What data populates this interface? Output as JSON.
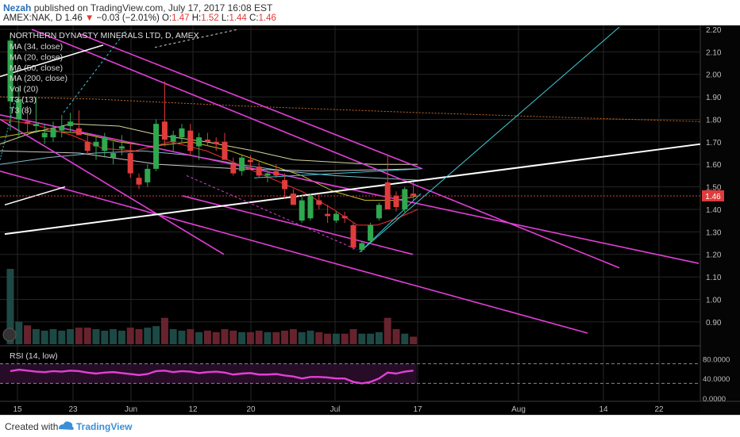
{
  "header": {
    "author": "Nezah",
    "published": "published on TradingView.com, July 17, 2017 16:08 EST",
    "symbol_line": "AMEX:NAK, D",
    "last": "1.46",
    "arrow": "▼",
    "change": "−0.03 (−2.01%)",
    "o_label": "O:",
    "o": "1.47",
    "h_label": "H:",
    "h": "1.52",
    "l_label": "L:",
    "l": "1.44",
    "c_label": "C:",
    "c": "1.46"
  },
  "footer": {
    "created_with": "Created with",
    "brand": "TradingView"
  },
  "colors": {
    "bg": "#000000",
    "grid": "#262626",
    "bull": "#2fa84f",
    "bear": "#e03c3c",
    "channel": "#e23fd7",
    "trend": "#ffffff",
    "cyan": "#3ec9d6",
    "rsi": "#e23fd7",
    "price_badge": "#e03c3c"
  },
  "chart_data": {
    "type": "candlestick",
    "title": "NORTHERN DYNASTY MINERALS LTD, D, AMEX",
    "legend": [
      "MA (34, close)",
      "MA (20, close)",
      "MA (50, close)",
      "MA (200, close)",
      "Vol (20)",
      "T3 (13)",
      "T3 (8)"
    ],
    "ylim": [
      0.85,
      2.2
    ],
    "y_ticks": [
      "2.20",
      "2.10",
      "2.00",
      "1.90",
      "1.80",
      "1.70",
      "1.60",
      "1.50",
      "1.40",
      "1.30",
      "1.20",
      "1.10",
      "1.00",
      "0.90"
    ],
    "x_ticks": [
      "15",
      "23",
      "Jun",
      "12",
      "20",
      "Jul",
      "17",
      "Aug",
      "14",
      "22"
    ],
    "last_price_label": "1.46",
    "last_price": 1.46,
    "candles": [
      {
        "o": 1.88,
        "h": 2.18,
        "l": 1.75,
        "c": 2.15
      },
      {
        "o": 1.8,
        "h": 1.95,
        "l": 1.72,
        "c": 1.89
      },
      {
        "o": 1.79,
        "h": 1.86,
        "l": 1.74,
        "c": 1.78
      },
      {
        "o": 1.77,
        "h": 1.9,
        "l": 1.74,
        "c": 1.78
      },
      {
        "o": 1.72,
        "h": 1.78,
        "l": 1.69,
        "c": 1.74
      },
      {
        "o": 1.72,
        "h": 1.79,
        "l": 1.7,
        "c": 1.76
      },
      {
        "o": 1.75,
        "h": 1.82,
        "l": 1.72,
        "c": 1.77
      },
      {
        "o": 1.77,
        "h": 1.83,
        "l": 1.74,
        "c": 1.79
      },
      {
        "o": 1.76,
        "h": 1.84,
        "l": 1.73,
        "c": 1.73
      },
      {
        "o": 1.7,
        "h": 1.73,
        "l": 1.64,
        "c": 1.66
      },
      {
        "o": 1.68,
        "h": 1.72,
        "l": 1.62,
        "c": 1.7
      },
      {
        "o": 1.66,
        "h": 1.74,
        "l": 1.63,
        "c": 1.72
      },
      {
        "o": 1.63,
        "h": 1.7,
        "l": 1.6,
        "c": 1.65
      },
      {
        "o": 1.67,
        "h": 1.73,
        "l": 1.64,
        "c": 1.68
      },
      {
        "o": 1.65,
        "h": 1.7,
        "l": 1.54,
        "c": 1.56
      },
      {
        "o": 1.54,
        "h": 1.56,
        "l": 1.49,
        "c": 1.51
      },
      {
        "o": 1.52,
        "h": 1.6,
        "l": 1.5,
        "c": 1.58
      },
      {
        "o": 1.58,
        "h": 1.8,
        "l": 1.57,
        "c": 1.78
      },
      {
        "o": 1.79,
        "h": 1.97,
        "l": 1.68,
        "c": 1.71
      },
      {
        "o": 1.7,
        "h": 1.75,
        "l": 1.66,
        "c": 1.73
      },
      {
        "o": 1.72,
        "h": 1.78,
        "l": 1.7,
        "c": 1.76
      },
      {
        "o": 1.75,
        "h": 1.78,
        "l": 1.64,
        "c": 1.66
      },
      {
        "o": 1.68,
        "h": 1.74,
        "l": 1.62,
        "c": 1.72
      },
      {
        "o": 1.71,
        "h": 1.74,
        "l": 1.68,
        "c": 1.7
      },
      {
        "o": 1.7,
        "h": 1.72,
        "l": 1.66,
        "c": 1.69
      },
      {
        "o": 1.7,
        "h": 1.74,
        "l": 1.62,
        "c": 1.62
      },
      {
        "o": 1.6,
        "h": 1.63,
        "l": 1.55,
        "c": 1.56
      },
      {
        "o": 1.57,
        "h": 1.64,
        "l": 1.55,
        "c": 1.63
      },
      {
        "o": 1.62,
        "h": 1.64,
        "l": 1.58,
        "c": 1.61
      },
      {
        "o": 1.59,
        "h": 1.61,
        "l": 1.54,
        "c": 1.55
      },
      {
        "o": 1.55,
        "h": 1.57,
        "l": 1.52,
        "c": 1.56
      },
      {
        "o": 1.57,
        "h": 1.6,
        "l": 1.54,
        "c": 1.55
      },
      {
        "o": 1.53,
        "h": 1.56,
        "l": 1.45,
        "c": 1.49
      },
      {
        "o": 1.47,
        "h": 1.49,
        "l": 1.42,
        "c": 1.42
      },
      {
        "o": 1.35,
        "h": 1.46,
        "l": 1.34,
        "c": 1.44
      },
      {
        "o": 1.36,
        "h": 1.47,
        "l": 1.35,
        "c": 1.46
      },
      {
        "o": 1.44,
        "h": 1.47,
        "l": 1.4,
        "c": 1.42
      },
      {
        "o": 1.38,
        "h": 1.42,
        "l": 1.34,
        "c": 1.37
      },
      {
        "o": 1.35,
        "h": 1.39,
        "l": 1.34,
        "c": 1.38
      },
      {
        "o": 1.37,
        "h": 1.39,
        "l": 1.34,
        "c": 1.36
      },
      {
        "o": 1.33,
        "h": 1.34,
        "l": 1.22,
        "c": 1.23
      },
      {
        "o": 1.22,
        "h": 1.26,
        "l": 1.21,
        "c": 1.25
      },
      {
        "o": 1.26,
        "h": 1.34,
        "l": 1.25,
        "c": 1.33
      },
      {
        "o": 1.36,
        "h": 1.43,
        "l": 1.35,
        "c": 1.42
      },
      {
        "o": 1.52,
        "h": 1.64,
        "l": 1.4,
        "c": 1.4
      },
      {
        "o": 1.46,
        "h": 1.48,
        "l": 1.39,
        "c": 1.41
      },
      {
        "o": 1.4,
        "h": 1.5,
        "l": 1.38,
        "c": 1.49
      },
      {
        "o": 1.47,
        "h": 1.52,
        "l": 1.44,
        "c": 1.46
      }
    ],
    "volume_rel": [
      1.0,
      0.3,
      0.25,
      0.2,
      0.18,
      0.2,
      0.18,
      0.2,
      0.22,
      0.22,
      0.2,
      0.18,
      0.2,
      0.18,
      0.22,
      0.2,
      0.22,
      0.24,
      0.35,
      0.2,
      0.18,
      0.2,
      0.16,
      0.18,
      0.16,
      0.2,
      0.18,
      0.16,
      0.16,
      0.18,
      0.16,
      0.16,
      0.18,
      0.2,
      0.16,
      0.18,
      0.16,
      0.14,
      0.14,
      0.14,
      0.2,
      0.14,
      0.14,
      0.16,
      0.35,
      0.2,
      0.14,
      0.1
    ],
    "rsi": {
      "label": "RSI (14, low)",
      "ylim": [
        0,
        100
      ],
      "y_ticks": [
        "80.0000",
        "40.0000",
        "0.0000"
      ],
      "bands": [
        70,
        30
      ],
      "values": [
        55,
        58,
        56,
        54,
        53,
        55,
        54,
        56,
        55,
        52,
        50,
        52,
        53,
        51,
        49,
        47,
        49,
        55,
        56,
        53,
        55,
        54,
        51,
        53,
        54,
        52,
        48,
        50,
        51,
        48,
        48,
        49,
        46,
        44,
        40,
        43,
        43,
        42,
        40,
        40,
        33,
        30,
        33,
        40,
        52,
        50,
        54,
        56
      ]
    }
  }
}
